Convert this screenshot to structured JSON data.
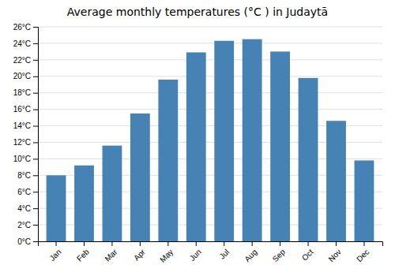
{
  "chart_data": {
    "type": "bar",
    "title": "Average monthly temperatures (°C ) in Judaytā",
    "categories": [
      "Jan",
      "Feb",
      "Mar",
      "Apr",
      "May",
      "Jun",
      "Jul",
      "Aug",
      "Sep",
      "Oct",
      "Nov",
      "Dec"
    ],
    "values": [
      8.0,
      9.2,
      11.6,
      15.5,
      19.6,
      22.9,
      24.3,
      24.5,
      23.0,
      19.8,
      14.6,
      9.8
    ],
    "ylim": [
      0,
      26
    ],
    "yticks": [
      {
        "value": 0,
        "label": "0°C"
      },
      {
        "value": 2,
        "label": "2°C"
      },
      {
        "value": 4,
        "label": "4°C"
      },
      {
        "value": 6,
        "label": "6°C"
      },
      {
        "value": 8,
        "label": "8°C"
      },
      {
        "value": 10,
        "label": "10°C"
      },
      {
        "value": 12,
        "label": "12°C"
      },
      {
        "value": 14,
        "label": "14°C"
      },
      {
        "value": 16,
        "label": "16°C"
      },
      {
        "value": 18,
        "label": "18°C"
      },
      {
        "value": 20,
        "label": "20°C"
      },
      {
        "value": 22,
        "label": "22°C"
      },
      {
        "value": 24,
        "label": "24°C"
      },
      {
        "value": 26,
        "label": "26°C"
      }
    ],
    "grid": true
  }
}
